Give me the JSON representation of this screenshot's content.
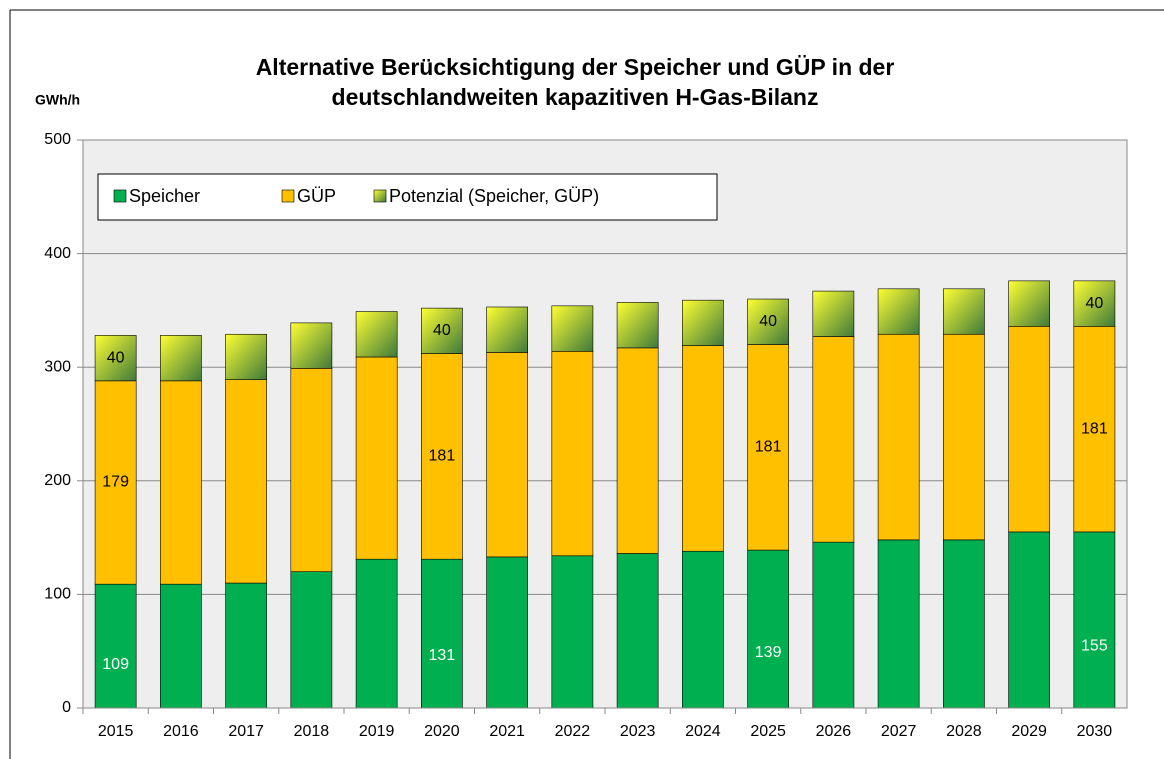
{
  "chart_data": {
    "type": "stacked-bar",
    "title": [
      "Alternative Berücksichtigung der Speicher und GÜP in der",
      "deutschlandweiten kapazitiven H-Gas-Bilanz"
    ],
    "y_label": "GWh/h",
    "categories": [
      "2015",
      "2016",
      "2017",
      "2018",
      "2019",
      "2020",
      "2021",
      "2022",
      "2023",
      "2024",
      "2025",
      "2026",
      "2027",
      "2028",
      "2029",
      "2030"
    ],
    "series": [
      {
        "name": "Speicher",
        "color": "#00b050",
        "label_color": "#ffffff",
        "values": [
          109,
          109,
          110,
          120,
          131,
          131,
          133,
          134,
          136,
          138,
          139,
          146,
          148,
          148,
          155,
          155
        ],
        "value_labels": [
          "109",
          null,
          null,
          null,
          null,
          "131",
          null,
          null,
          null,
          null,
          "139",
          null,
          null,
          null,
          null,
          "155"
        ]
      },
      {
        "name": "GÜP",
        "color": "#ffc000",
        "label_color": "#000000",
        "values": [
          179,
          179,
          179,
          179,
          178,
          181,
          180,
          180,
          181,
          181,
          181,
          181,
          181,
          181,
          181,
          181
        ],
        "value_labels": [
          "179",
          null,
          null,
          null,
          null,
          "181",
          null,
          null,
          null,
          null,
          "181",
          null,
          null,
          null,
          null,
          "181"
        ]
      },
      {
        "name": "Potenzial (Speicher, GÜP)",
        "color": "#3f7a3a",
        "label_color": "#000000",
        "values": [
          40,
          40,
          40,
          40,
          40,
          40,
          40,
          40,
          40,
          40,
          40,
          40,
          40,
          40,
          40,
          40
        ],
        "value_labels": [
          "40",
          null,
          null,
          null,
          null,
          "40",
          null,
          null,
          null,
          null,
          "40",
          null,
          null,
          null,
          null,
          "40"
        ]
      }
    ],
    "ylim": [
      0,
      500
    ],
    "yticks": [
      0,
      100,
      200,
      300,
      400,
      500
    ],
    "grid": true
  }
}
